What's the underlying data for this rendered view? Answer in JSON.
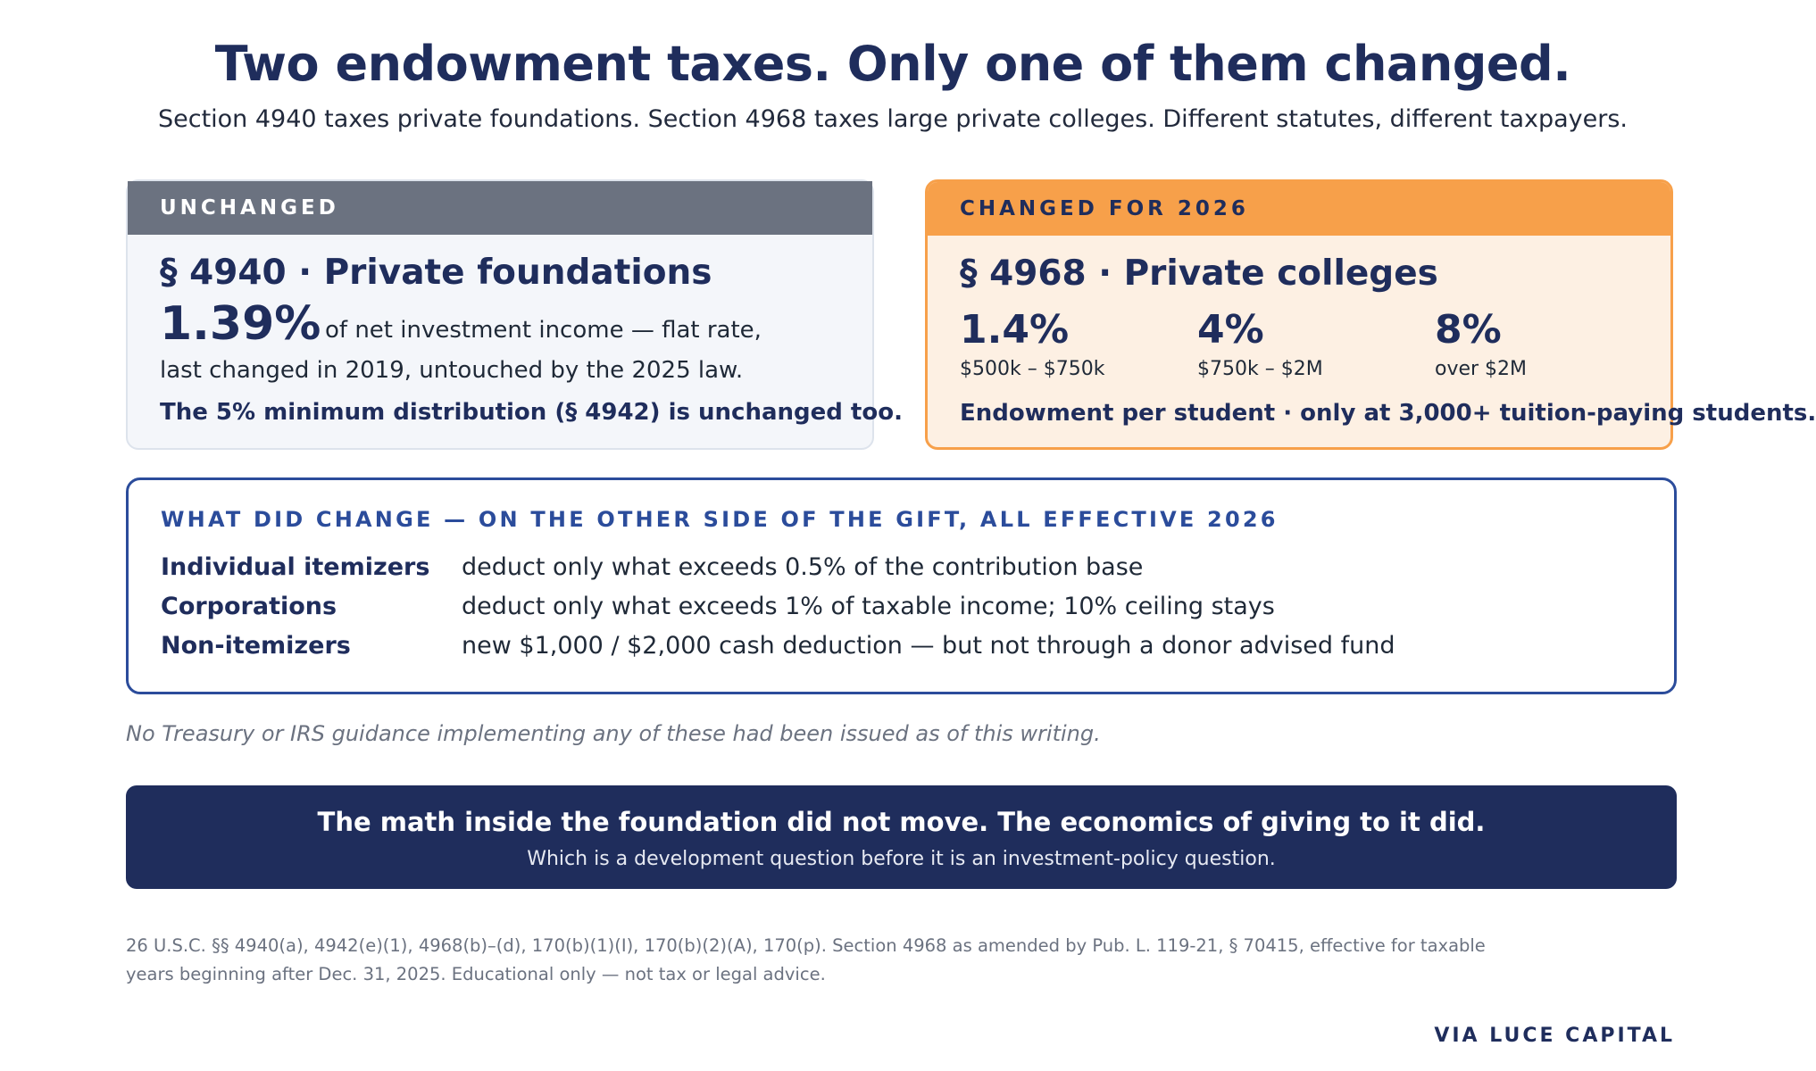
{
  "header": {
    "title": "Two endowment taxes. Only one of them changed.",
    "subtitle": "Section 4940 taxes private foundations. Section 4968 taxes large private colleges. Different statutes, different taxpayers."
  },
  "left_card": {
    "status": "UNCHANGED",
    "heading": "§ 4940 · Private foundations",
    "rate": "1.39%",
    "rate_desc_1": "of net investment income — flat rate,",
    "rate_desc_2": "last changed in 2019, untouched by the 2025 law.",
    "note": "The 5% minimum distribution (§ 4942) is unchanged too."
  },
  "right_card": {
    "status": "CHANGED FOR 2026",
    "heading": "§ 4968 · Private colleges",
    "tiers": [
      {
        "rate": "1.4%",
        "range": "$500k – $750k"
      },
      {
        "rate": "4%",
        "range": "$750k – $2M"
      },
      {
        "rate": "8%",
        "range": "over $2M"
      }
    ],
    "note": "Endowment per student · only at 3,000+ tuition-paying students."
  },
  "changes": {
    "heading": "WHAT DID CHANGE — ON THE OTHER SIDE OF THE GIFT, ALL EFFECTIVE 2026",
    "rows": [
      {
        "who": "Individual itemizers",
        "what": "deduct only what exceeds 0.5% of the contribution base"
      },
      {
        "who": "Corporations",
        "what": "deduct only what exceeds 1% of taxable income; 10% ceiling stays"
      },
      {
        "who": "Non-itemizers",
        "what": "new $1,000 / $2,000 cash deduction — but not through a donor advised fund"
      }
    ]
  },
  "caveat": "No Treasury or IRS guidance implementing any of these had been issued as of this writing.",
  "banner": {
    "main": "The math inside the foundation did not move. The economics of giving to it did.",
    "sub": "Which is a development question before it is an investment-policy question."
  },
  "footnote": {
    "line_1": "26 U.S.C. §§ 4940(a), 4942(e)(1), 4968(b)–(d), 170(b)(1)(I), 170(b)(2)(A), 170(p). Section 4968 as amended by Pub. L. 119-21, § 70415, effective for taxable",
    "line_2": "years beginning after Dec. 31, 2025. Educational only — not tax or legal advice."
  },
  "credit": "VIA LUCE CAPITAL",
  "colors": {
    "navy": "#1f2d5c",
    "accent_blue": "#2b4c9b",
    "unchanged_gray": "#6b7280",
    "changed_orange": "#f7a04a"
  }
}
